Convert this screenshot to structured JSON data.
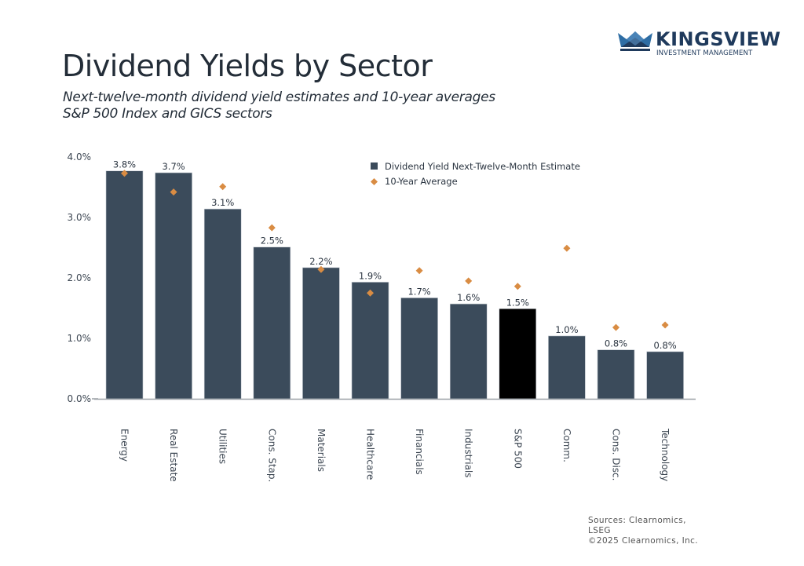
{
  "brand": {
    "name": "KINGSVIEW",
    "tagline": "INVESTMENT MANAGEMENT",
    "colors": {
      "dark": "#1f3a5c",
      "light": "#2e6da4"
    }
  },
  "header": {
    "title": "Dividend Yields by Sector",
    "subtitle_line1": "Next-twelve-month dividend yield estimates and 10-year averages",
    "subtitle_line2": "S&P 500 Index and GICS sectors"
  },
  "footer": {
    "line1": "Sources: Clearnomics,",
    "line2": "LSEG",
    "line3": "©2025 Clearnomics, Inc."
  },
  "chart_data": {
    "type": "bar",
    "title": "Dividend Yields by Sector",
    "xlabel": "",
    "ylabel": "",
    "ylim": [
      0,
      4
    ],
    "yticks": [
      0,
      1,
      2,
      3,
      4
    ],
    "ytick_labels": [
      "0.0%",
      "1.0%",
      "2.0%",
      "3.0%",
      "4.0%"
    ],
    "grid": false,
    "legend_position": "top-right",
    "categories": [
      "Energy",
      "Real Estate",
      "Utilities",
      "Cons. Stap.",
      "Materials",
      "Healthcare",
      "Financials",
      "Industrials",
      "S&P 500",
      "Comm.",
      "Cons. Disc.",
      "Technology"
    ],
    "highlight_category": "S&P 500",
    "colors": {
      "bar": "#3b4b5b",
      "highlight": "#000000",
      "marker": "#d98c43",
      "axis": "#9aa0a6"
    },
    "series": [
      {
        "name": "Dividend Yield Next-Twelve-Month Estimate",
        "type": "bar",
        "values": [
          3.77,
          3.74,
          3.14,
          2.51,
          2.17,
          1.93,
          1.67,
          1.57,
          1.49,
          1.04,
          0.81,
          0.78
        ],
        "labels": [
          "3.8%",
          "3.7%",
          "3.1%",
          "2.5%",
          "2.2%",
          "1.9%",
          "1.7%",
          "1.6%",
          "1.5%",
          "1.0%",
          "0.8%",
          "0.8%"
        ]
      },
      {
        "name": "10-Year Average",
        "type": "scatter",
        "marker": "diamond",
        "values": [
          3.73,
          3.42,
          3.51,
          2.83,
          2.14,
          1.75,
          2.12,
          1.95,
          1.86,
          2.49,
          1.18,
          1.22
        ]
      }
    ]
  }
}
